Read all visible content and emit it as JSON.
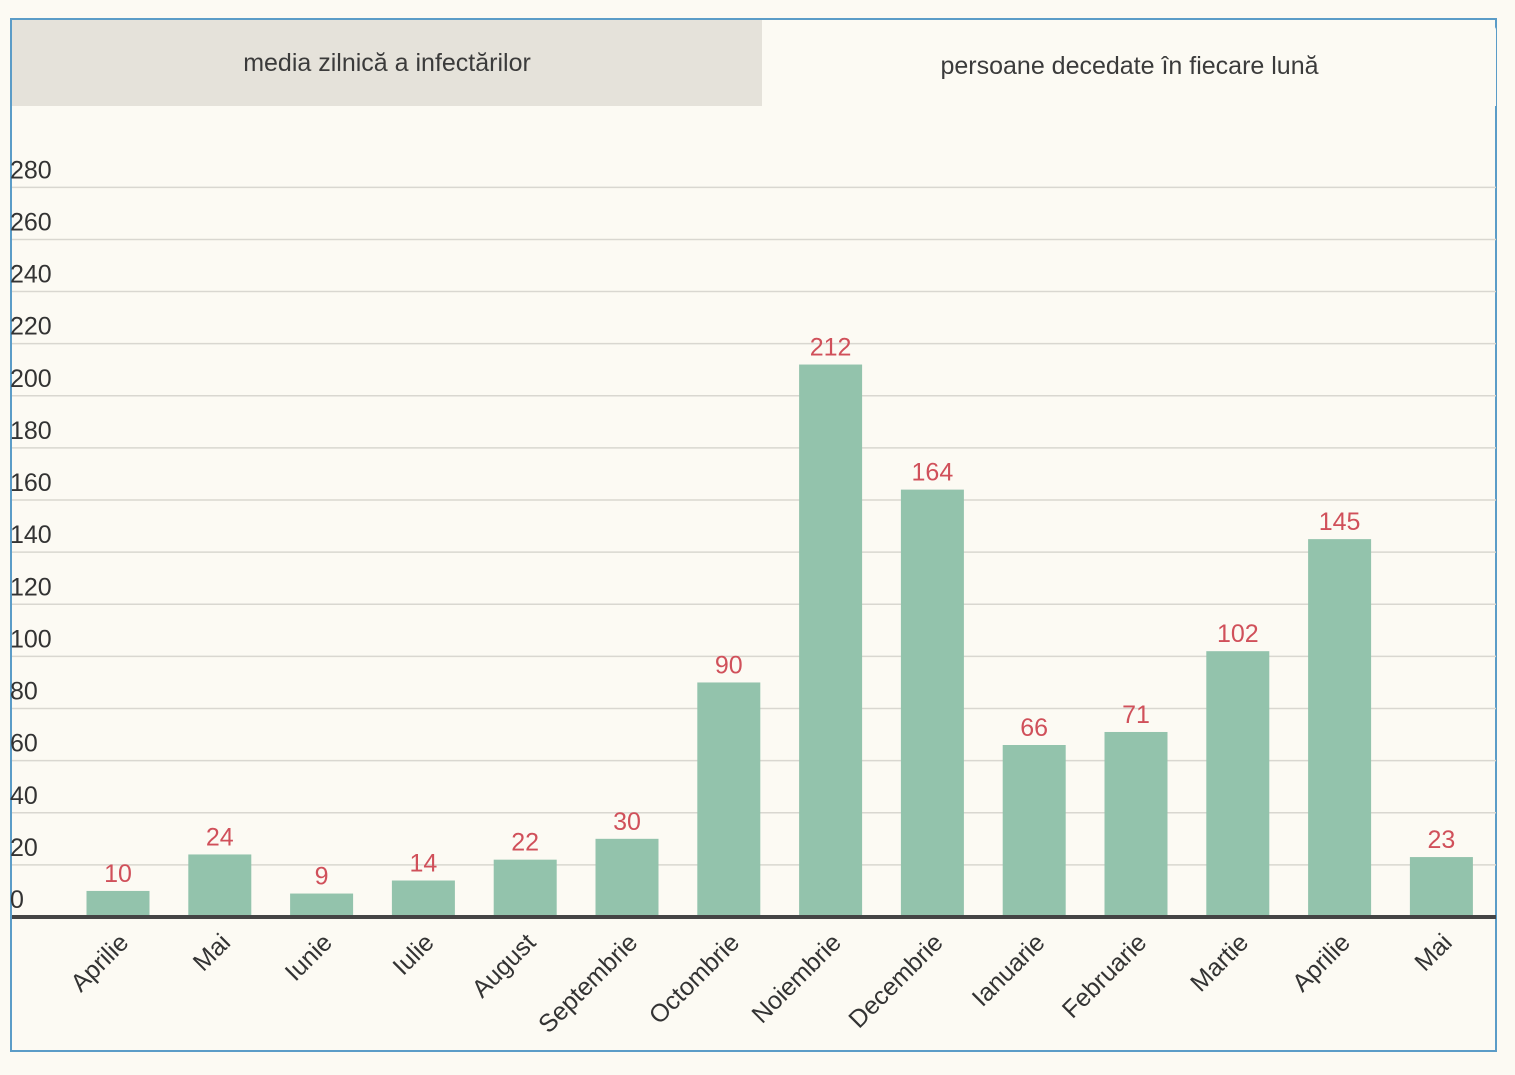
{
  "tabs": [
    {
      "label": "media zilnică a infectărilor",
      "active": false
    },
    {
      "label": "persoane decedate în fiecare lună",
      "active": true
    }
  ],
  "chart_data": {
    "type": "bar",
    "categories": [
      "Aprilie",
      "Mai",
      "Iunie",
      "Iulie",
      "August",
      "Septembrie",
      "Octombrie",
      "Noiembrie",
      "Decembrie",
      "Ianuarie",
      "Februarie",
      "Martie",
      "Aprilie",
      "Mai"
    ],
    "values": [
      10,
      24,
      9,
      14,
      22,
      30,
      90,
      212,
      164,
      66,
      71,
      102,
      145,
      23
    ],
    "yticks": [
      0,
      20,
      40,
      60,
      80,
      100,
      120,
      140,
      160,
      180,
      200,
      220,
      240,
      260,
      280
    ],
    "ylim": [
      0,
      280
    ],
    "grid": true,
    "data_labels": true,
    "colors": {
      "bar": "#93c3ac",
      "label": "#d0505a",
      "grid": "#d9d7d0",
      "baseline": "#444444"
    }
  }
}
